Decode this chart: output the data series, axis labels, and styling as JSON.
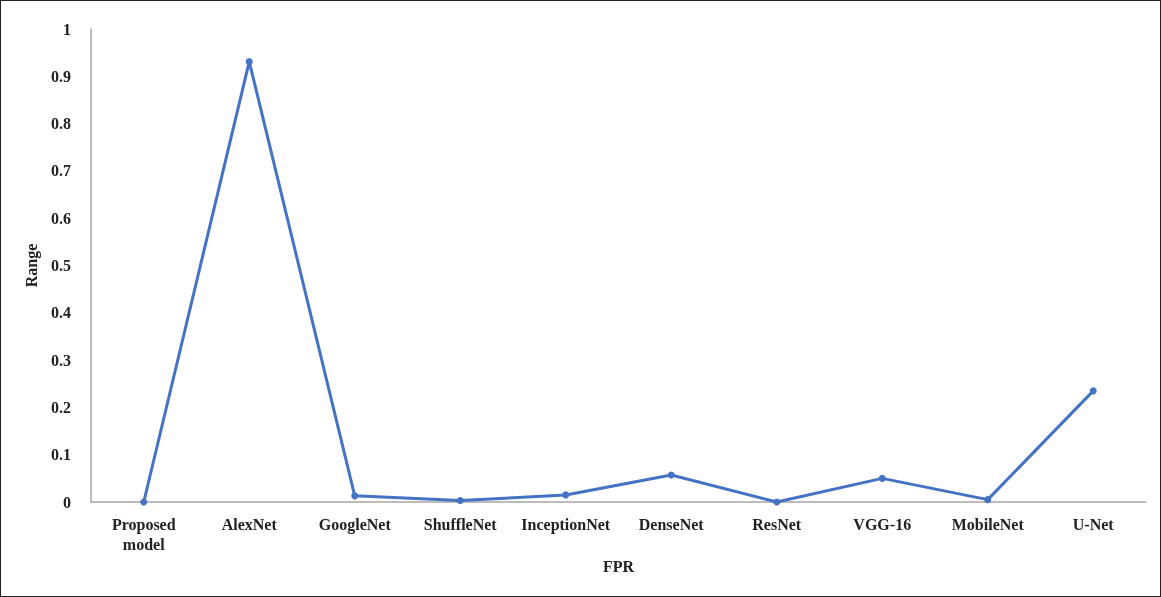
{
  "chart_data": {
    "type": "line",
    "xlabel": "FPR",
    "ylabel": "Range",
    "categories": [
      "Proposed\nmodel",
      "AlexNet",
      "GoogleNet",
      "ShuffleNet",
      "InceptionNet",
      "DenseNet",
      "ResNet",
      "VGG-16",
      "MobileNet",
      "U-Net"
    ],
    "series": [
      {
        "color": "#4472c4",
        "values": [
          0,
          0.931,
          0.013,
          0.003,
          0.015,
          0.057,
          0,
          0.05,
          0.005,
          0.235
        ]
      }
    ],
    "ylim": [
      0,
      1
    ],
    "yticks": [
      0,
      0.1,
      0.2,
      0.3,
      0.4,
      0.5,
      0.6,
      0.7,
      0.8,
      0.9,
      1
    ],
    "grid": false,
    "marker": "circle",
    "line_style": "solid"
  }
}
